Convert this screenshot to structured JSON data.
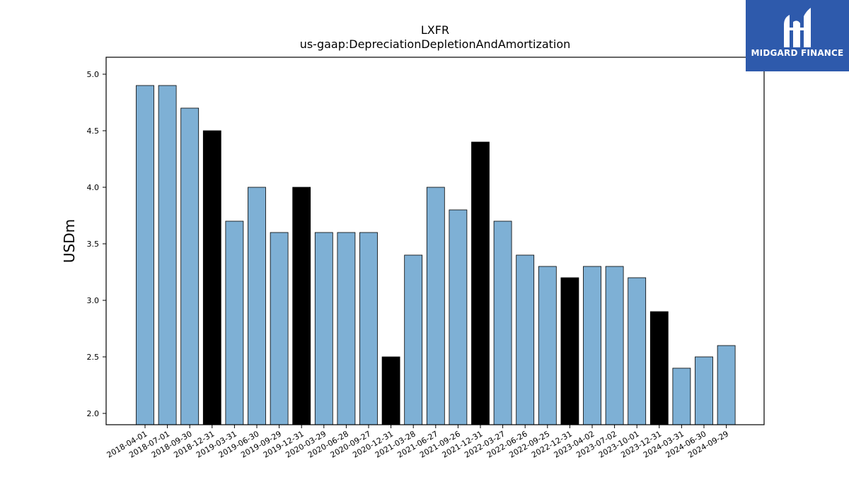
{
  "chart_data": {
    "type": "bar",
    "title": "LXFR",
    "subtitle": "us-gaap:DepreciationDepletionAndAmortization",
    "xlabel": "",
    "ylabel": "USDm",
    "ylim": [
      1.9,
      5.15
    ],
    "yticks": [
      "2.0",
      "2.5",
      "3.0",
      "3.5",
      "4.0",
      "4.5",
      "5.0"
    ],
    "grid": false,
    "categories": [
      "2018-04-01",
      "2018-07-01",
      "2018-09-30",
      "2018-12-31",
      "2019-03-31",
      "2019-06-30",
      "2019-09-29",
      "2019-12-31",
      "2020-03-29",
      "2020-06-28",
      "2020-09-27",
      "2020-12-31",
      "2021-03-28",
      "2021-06-27",
      "2021-09-26",
      "2021-12-31",
      "2022-03-27",
      "2022-06-26",
      "2022-09-25",
      "2022-12-31",
      "2023-04-02",
      "2023-07-02",
      "2023-10-01",
      "2023-12-31",
      "2024-03-31",
      "2024-06-30",
      "2024-09-29"
    ],
    "values": [
      4.9,
      4.9,
      4.7,
      4.5,
      3.7,
      4.0,
      3.6,
      4.0,
      3.6,
      3.6,
      3.6,
      2.5,
      3.4,
      4.0,
      3.8,
      4.4,
      3.7,
      3.4,
      3.3,
      3.2,
      3.3,
      3.3,
      3.2,
      2.9,
      2.4,
      2.5,
      2.6
    ],
    "bar_colors": {
      "quarter": "#7eb0d5",
      "year_end": "#000000",
      "edge": "#000000"
    }
  },
  "logo": {
    "text": "MIDGARD FINANCE",
    "background": "#2e5aac",
    "icon": "midgard-logo-icon"
  }
}
